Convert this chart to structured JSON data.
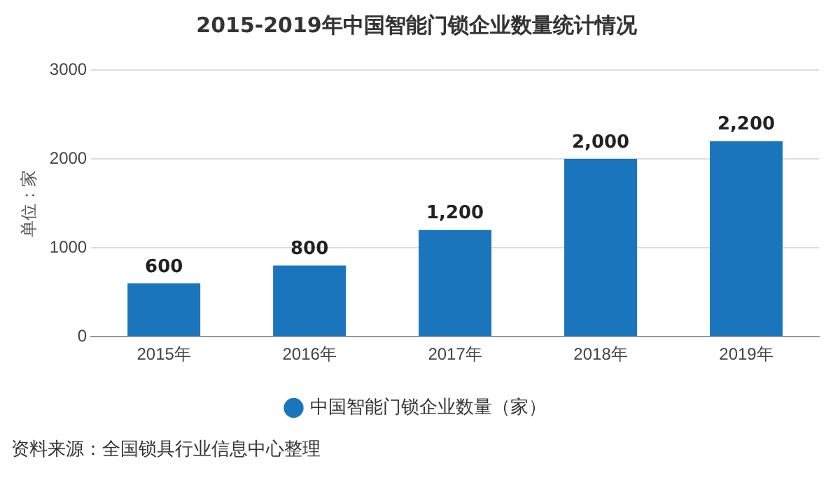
{
  "chart_data": {
    "type": "bar",
    "title": "2015-2019年中国智能门锁企业数量统计情况",
    "categories": [
      "2015年",
      "2016年",
      "2017年",
      "2018年",
      "2019年"
    ],
    "series": [
      {
        "name": "中国智能门锁企业数量（家）",
        "color": "#1a75bc",
        "values": [
          600,
          800,
          1200,
          2000,
          2200
        ],
        "value_labels": [
          "600",
          "800",
          "1,200",
          "2,000",
          "2,200"
        ]
      }
    ],
    "ylabel": "单位：家",
    "ylim": [
      0,
      3000
    ],
    "yticks": [
      0,
      1000,
      2000,
      3000
    ],
    "grid": "y",
    "legend": "bottom",
    "annotations": [
      "资料来源：全国锁具行业信息中心整理"
    ]
  }
}
